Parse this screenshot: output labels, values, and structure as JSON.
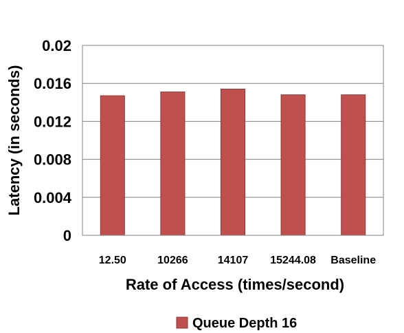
{
  "chart_data": {
    "type": "bar",
    "categories": [
      "12.50",
      "10266",
      "14107",
      "15244.08",
      "Baseline"
    ],
    "series": [
      {
        "name": "Queue Depth 16",
        "values": [
          0.0147,
          0.0151,
          0.0154,
          0.0148,
          0.0148
        ],
        "color": "#c0504d"
      }
    ],
    "title": "",
    "xlabel": "Rate of Access (times/second)",
    "ylabel": "Latency (in seconds)",
    "ylim": [
      0,
      0.02
    ],
    "yticks": [
      "0",
      "0.004",
      "0.008",
      "0.012",
      "0.016",
      "0.02"
    ],
    "grid": true,
    "legend_position": "bottom"
  }
}
